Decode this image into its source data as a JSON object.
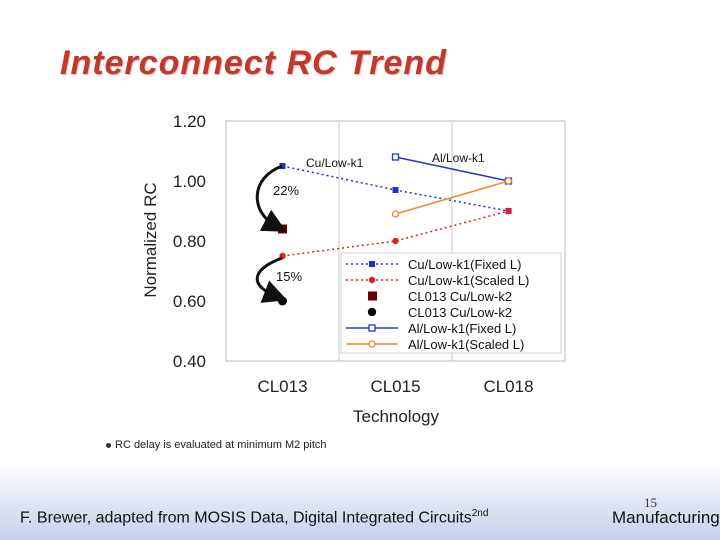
{
  "slide": {
    "title": "Interconnect RC Trend",
    "note": "RC delay is evaluated at minimum M2 pitch",
    "footer_text": "F. Brewer, adapted from MOSIS Data, Digital Integrated Circuits",
    "footer_sup": "2nd",
    "page_number": "15",
    "footer_right": "Manufacturing"
  },
  "chart_data": {
    "type": "line",
    "xlabel": "Technology",
    "ylabel": "Normalized RC",
    "categories": [
      "CL013",
      "CL015",
      "CL018"
    ],
    "ylim": [
      0.4,
      1.2
    ],
    "yticks": [
      "0.40",
      "0.60",
      "0.80",
      "1.00",
      "1.20"
    ],
    "grid": false,
    "legend_position": "bottom-right",
    "series": [
      {
        "name": "Cu/Low-k1(Fixed L)",
        "values": [
          1.05,
          0.97,
          0.9
        ],
        "color": "#1f2fd0",
        "line": "dotted",
        "marker": "filled-square"
      },
      {
        "name": "Cu/Low-k1(Scaled L)",
        "values": [
          0.75,
          0.8,
          0.9
        ],
        "color": "#e0201a",
        "line": "dotted",
        "marker": "filled-circle"
      },
      {
        "name": "CL013 Cu/Low-k2",
        "values": [
          0.84,
          null,
          null
        ],
        "color": "#6b0000",
        "line": "none",
        "marker": "filled-square"
      },
      {
        "name": "CL013 Cu/Low-k2",
        "values": [
          0.6,
          null,
          null
        ],
        "color": "#000000",
        "line": "none",
        "marker": "filled-circle"
      },
      {
        "name": "Al/Low-k1(Fixed L)",
        "values": [
          null,
          1.08,
          1.0
        ],
        "color": "#2a36c8",
        "line": "solid",
        "marker": "open-square"
      },
      {
        "name": "Al/Low-k1(Scaled L)",
        "values": [
          null,
          0.89,
          1.0
        ],
        "color": "#f08a24",
        "line": "solid",
        "marker": "open-circle"
      }
    ],
    "annotations": [
      {
        "text": "Cu/Low-k1"
      },
      {
        "text": "Al/Low-k1"
      },
      {
        "text": "22%"
      },
      {
        "text": "15%"
      }
    ]
  }
}
